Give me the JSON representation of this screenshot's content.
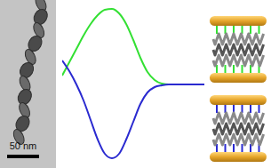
{
  "tem_image": {
    "scale_bar_label": "50 nm"
  },
  "chart_data": {
    "type": "line",
    "tick_labels": false,
    "x": [
      0,
      5,
      10,
      15,
      20,
      25,
      30,
      35,
      40,
      45,
      50,
      55,
      60,
      65,
      70,
      75,
      80,
      90,
      100
    ],
    "xlim": [
      0,
      100
    ],
    "ylim": [
      -90,
      90
    ],
    "series": [
      {
        "color": "#33e033",
        "values": [
          10,
          25,
          40,
          55,
          68,
          78,
          84,
          85,
          80,
          68,
          50,
          30,
          14,
          5,
          1,
          0,
          0,
          0,
          0
        ]
      },
      {
        "color": "#2a2ad0",
        "values": [
          27,
          15,
          0,
          -18,
          -40,
          -62,
          -78,
          -83,
          -78,
          -62,
          -42,
          -22,
          -9,
          -3,
          -1,
          0,
          0,
          0,
          0
        ]
      }
    ]
  }
}
